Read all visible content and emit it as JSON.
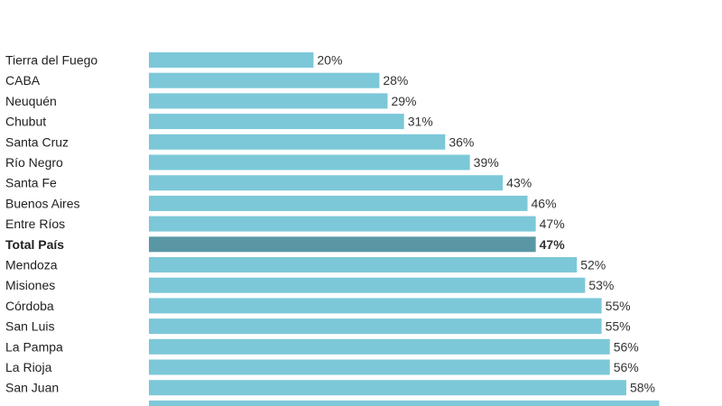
{
  "chart_data": {
    "type": "bar",
    "orientation": "horizontal",
    "categories": [
      "Tierra del Fuego",
      "CABA",
      "Neuquén",
      "Chubut",
      "Santa Cruz",
      "Río Negro",
      "Santa Fe",
      "Buenos Aires",
      "Entre Ríos",
      "Total País",
      "Mendoza",
      "Misiones",
      "Córdoba",
      "San Luis",
      "La Pampa",
      "La Rioja",
      "San Juan"
    ],
    "values": [
      20,
      28,
      29,
      31,
      36,
      39,
      43,
      46,
      47,
      47,
      52,
      53,
      55,
      55,
      56,
      56,
      58
    ],
    "value_labels": [
      "20%",
      "28%",
      "29%",
      "31%",
      "36%",
      "39%",
      "43%",
      "46%",
      "47%",
      "47%",
      "52%",
      "53%",
      "55%",
      "55%",
      "56%",
      "56%",
      "58%"
    ],
    "partial_next_value": 62,
    "highlight_category": "Total País",
    "colors": {
      "bar": "#7cc8d8",
      "highlight_bar": "#5a97a5",
      "highlight_text": "#6dbdcf",
      "label": "#1f1f1f",
      "value_label": "#333333"
    },
    "xlim": [
      0,
      100
    ],
    "grid": false,
    "legend": "none",
    "title": "",
    "xlabel": "",
    "ylabel": ""
  }
}
